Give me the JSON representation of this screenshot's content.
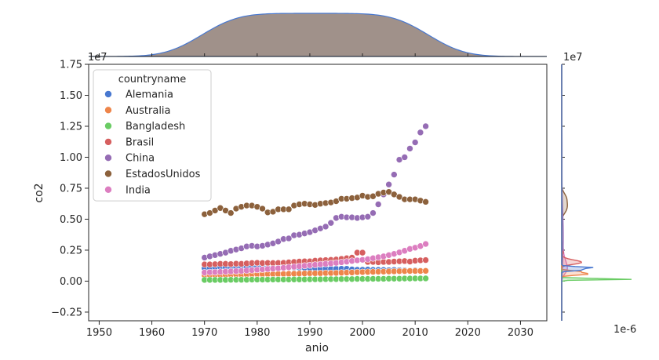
{
  "chart_data": {
    "type": "scatter",
    "title": "",
    "xlabel": "anio",
    "ylabel": "co2",
    "x_offset_label": "1e-6",
    "y_offset_label": "1e7",
    "y_offset_label_right": "1e7",
    "xlim": [
      1948,
      2035
    ],
    "ylim": [
      -0.32,
      1.75
    ],
    "x_ticks": [
      1950,
      1960,
      1970,
      1980,
      1990,
      2000,
      2010,
      2020,
      2030
    ],
    "y_ticks": [
      -0.25,
      0.0,
      0.25,
      0.5,
      0.75,
      1.0,
      1.25,
      1.5,
      1.75
    ],
    "x_tick_labels": [
      "1950",
      "1960",
      "1970",
      "1980",
      "1990",
      "2000",
      "2010",
      "2020",
      "2030"
    ],
    "y_tick_labels": [
      "−0.25",
      "0.00",
      "0.25",
      "0.50",
      "0.75",
      "1.00",
      "1.25",
      "1.50",
      "1.75"
    ],
    "legend_title": "countryname",
    "legend_position": "upper-left",
    "grid": false,
    "series": [
      {
        "name": "Alemania",
        "color": "#4878d0",
        "x": [
          1970,
          1971,
          1972,
          1973,
          1974,
          1975,
          1976,
          1977,
          1978,
          1979,
          1980,
          1981,
          1982,
          1983,
          1984,
          1985,
          1986,
          1987,
          1988,
          1989,
          1990,
          1991,
          1992,
          1993,
          1994,
          1995,
          1996,
          1997,
          1998,
          1999,
          2000,
          2001,
          2002,
          2003,
          2004,
          2005,
          2006,
          2007,
          2008,
          2009,
          2010,
          2011,
          2012
        ],
        "y": [
          0.105,
          0.108,
          0.11,
          0.115,
          0.112,
          0.108,
          0.113,
          0.112,
          0.115,
          0.118,
          0.115,
          0.112,
          0.108,
          0.107,
          0.11,
          0.11,
          0.11,
          0.11,
          0.109,
          0.107,
          0.105,
          0.105,
          0.1,
          0.1,
          0.1,
          0.1,
          0.1,
          0.1,
          0.095,
          0.092,
          0.092,
          0.093,
          0.091,
          0.091,
          0.09,
          0.088,
          0.09,
          0.088,
          0.087,
          0.085,
          0.087,
          0.085,
          0.085
        ]
      },
      {
        "name": "Australia",
        "color": "#ee854a",
        "x": [
          1970,
          1971,
          1972,
          1973,
          1974,
          1975,
          1976,
          1977,
          1978,
          1979,
          1980,
          1981,
          1982,
          1983,
          1984,
          1985,
          1986,
          1987,
          1988,
          1989,
          1990,
          1991,
          1992,
          1993,
          1994,
          1995,
          1996,
          1997,
          1998,
          1999,
          2000,
          2001,
          2002,
          2003,
          2004,
          2005,
          2006,
          2007,
          2008,
          2009,
          2010,
          2011,
          2012
        ],
        "y": [
          0.048,
          0.049,
          0.05,
          0.05,
          0.051,
          0.052,
          0.053,
          0.053,
          0.054,
          0.055,
          0.056,
          0.056,
          0.057,
          0.057,
          0.058,
          0.058,
          0.059,
          0.06,
          0.061,
          0.062,
          0.063,
          0.063,
          0.064,
          0.065,
          0.065,
          0.066,
          0.068,
          0.069,
          0.07,
          0.072,
          0.073,
          0.074,
          0.075,
          0.076,
          0.077,
          0.078,
          0.079,
          0.08,
          0.081,
          0.082,
          0.082,
          0.082,
          0.083
        ]
      },
      {
        "name": "Bangladesh",
        "color": "#6acc64",
        "x": [
          1970,
          1971,
          1972,
          1973,
          1974,
          1975,
          1976,
          1977,
          1978,
          1979,
          1980,
          1981,
          1982,
          1983,
          1984,
          1985,
          1986,
          1987,
          1988,
          1989,
          1990,
          1991,
          1992,
          1993,
          1994,
          1995,
          1996,
          1997,
          1998,
          1999,
          2000,
          2001,
          2002,
          2003,
          2004,
          2005,
          2006,
          2007,
          2008,
          2009,
          2010,
          2011,
          2012
        ],
        "y": [
          0.01,
          0.01,
          0.01,
          0.01,
          0.01,
          0.011,
          0.011,
          0.011,
          0.011,
          0.012,
          0.012,
          0.012,
          0.012,
          0.013,
          0.013,
          0.013,
          0.013,
          0.014,
          0.014,
          0.014,
          0.015,
          0.015,
          0.015,
          0.016,
          0.016,
          0.016,
          0.017,
          0.017,
          0.017,
          0.018,
          0.018,
          0.018,
          0.019,
          0.019,
          0.019,
          0.02,
          0.02,
          0.02,
          0.021,
          0.021,
          0.022,
          0.022,
          0.022
        ]
      },
      {
        "name": "Brasil",
        "color": "#d65f5f",
        "x": [
          1970,
          1971,
          1972,
          1973,
          1974,
          1975,
          1976,
          1977,
          1978,
          1979,
          1980,
          1981,
          1982,
          1983,
          1984,
          1985,
          1986,
          1987,
          1988,
          1989,
          1990,
          1991,
          1992,
          1993,
          1994,
          1995,
          1996,
          1997,
          1998,
          1999,
          2000,
          2001,
          2002,
          2003,
          2004,
          2005,
          2006,
          2007,
          2008,
          2009,
          2010,
          2011,
          2012
        ],
        "y": [
          0.135,
          0.135,
          0.137,
          0.14,
          0.14,
          0.138,
          0.141,
          0.14,
          0.143,
          0.146,
          0.148,
          0.146,
          0.147,
          0.146,
          0.147,
          0.148,
          0.152,
          0.155,
          0.158,
          0.16,
          0.16,
          0.165,
          0.168,
          0.17,
          0.172,
          0.175,
          0.18,
          0.185,
          0.19,
          0.23,
          0.23,
          0.155,
          0.155,
          0.152,
          0.155,
          0.155,
          0.158,
          0.16,
          0.162,
          0.158,
          0.165,
          0.168,
          0.17
        ]
      },
      {
        "name": "China",
        "color": "#956cb4",
        "x": [
          1970,
          1971,
          1972,
          1973,
          1974,
          1975,
          1976,
          1977,
          1978,
          1979,
          1980,
          1981,
          1982,
          1983,
          1984,
          1985,
          1986,
          1987,
          1988,
          1989,
          1990,
          1991,
          1992,
          1993,
          1994,
          1995,
          1996,
          1997,
          1998,
          1999,
          2000,
          2001,
          2002,
          2003,
          2004,
          2005,
          2006,
          2007,
          2008,
          2009,
          2010,
          2011,
          2012
        ],
        "y": [
          0.19,
          0.2,
          0.21,
          0.22,
          0.23,
          0.245,
          0.255,
          0.265,
          0.28,
          0.285,
          0.28,
          0.285,
          0.295,
          0.305,
          0.32,
          0.34,
          0.345,
          0.37,
          0.375,
          0.385,
          0.395,
          0.41,
          0.425,
          0.44,
          0.47,
          0.51,
          0.52,
          0.515,
          0.515,
          0.51,
          0.515,
          0.52,
          0.55,
          0.62,
          0.7,
          0.78,
          0.86,
          0.98,
          1.0,
          1.07,
          1.12,
          1.2,
          1.25
        ]
      },
      {
        "name": "EstadosUnidos",
        "color": "#8c613c",
        "x": [
          1970,
          1971,
          1972,
          1973,
          1974,
          1975,
          1976,
          1977,
          1978,
          1979,
          1980,
          1981,
          1982,
          1983,
          1984,
          1985,
          1986,
          1987,
          1988,
          1989,
          1990,
          1991,
          1992,
          1993,
          1994,
          1995,
          1996,
          1997,
          1998,
          1999,
          2000,
          2001,
          2002,
          2003,
          2004,
          2005,
          2006,
          2007,
          2008,
          2009,
          2010,
          2011,
          2012
        ],
        "y": [
          0.54,
          0.55,
          0.57,
          0.59,
          0.57,
          0.55,
          0.585,
          0.6,
          0.61,
          0.61,
          0.6,
          0.585,
          0.555,
          0.56,
          0.58,
          0.58,
          0.58,
          0.61,
          0.62,
          0.625,
          0.62,
          0.615,
          0.625,
          0.63,
          0.635,
          0.645,
          0.665,
          0.665,
          0.67,
          0.675,
          0.69,
          0.68,
          0.685,
          0.705,
          0.715,
          0.72,
          0.7,
          0.68,
          0.66,
          0.66,
          0.66,
          0.65,
          0.64
        ]
      },
      {
        "name": "India",
        "color": "#dc7ec0",
        "x": [
          1970,
          1971,
          1972,
          1973,
          1974,
          1975,
          1976,
          1977,
          1978,
          1979,
          1980,
          1981,
          1982,
          1983,
          1984,
          1985,
          1986,
          1987,
          1988,
          1989,
          1990,
          1991,
          1992,
          1993,
          1994,
          1995,
          1996,
          1997,
          1998,
          1999,
          2000,
          2001,
          2002,
          2003,
          2004,
          2005,
          2006,
          2007,
          2008,
          2009,
          2010,
          2011,
          2012
        ],
        "y": [
          0.07,
          0.072,
          0.073,
          0.075,
          0.077,
          0.079,
          0.081,
          0.083,
          0.086,
          0.089,
          0.092,
          0.095,
          0.098,
          0.101,
          0.104,
          0.108,
          0.112,
          0.116,
          0.12,
          0.124,
          0.128,
          0.132,
          0.136,
          0.14,
          0.143,
          0.147,
          0.152,
          0.157,
          0.163,
          0.168,
          0.172,
          0.177,
          0.185,
          0.193,
          0.2,
          0.21,
          0.22,
          0.232,
          0.245,
          0.26,
          0.27,
          0.283,
          0.3
        ]
      }
    ],
    "marginals": {
      "top": {
        "type": "kde",
        "fill_color": "#9b8b84",
        "line_color": "#4878d0"
      },
      "right": {
        "type": "kde-per-series"
      }
    }
  }
}
